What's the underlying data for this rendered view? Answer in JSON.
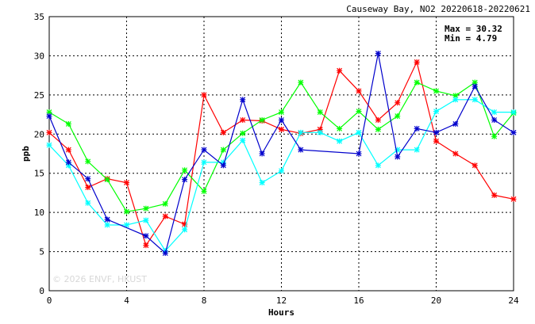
{
  "chart_data": {
    "type": "line",
    "title": "Causeway Bay, NO2 20220618-20220621",
    "xlabel": "Hours",
    "ylabel": "ppb",
    "xlim": [
      0,
      24
    ],
    "ylim": [
      0,
      35
    ],
    "xticks": [
      0,
      4,
      8,
      12,
      16,
      20,
      24
    ],
    "yticks": [
      0,
      5,
      10,
      15,
      20,
      25,
      30,
      35
    ],
    "grid": "dashed",
    "stats": {
      "max_label": "Max = 30.32",
      "min_label": "Min =  4.79"
    },
    "watermark": "© 2026  ENVF, HKUST",
    "series": [
      {
        "color": "#ff0000",
        "x": [
          0,
          1,
          2,
          3,
          4,
          5,
          6,
          7,
          8,
          9,
          10,
          11,
          12,
          13,
          14,
          15,
          16,
          17,
          18,
          19,
          20,
          21,
          22,
          23,
          24
        ],
        "y": [
          20.2,
          18.0,
          13.2,
          14.3,
          13.8,
          5.8,
          9.5,
          8.5,
          25.0,
          20.2,
          21.8,
          21.7,
          20.6,
          20.1,
          20.6,
          28.1,
          25.5,
          21.8,
          24.0,
          29.2,
          19.1,
          17.5,
          16.0,
          12.2,
          11.7
        ]
      },
      {
        "color": "#00ff00",
        "x": [
          0,
          1,
          2,
          3,
          4,
          5,
          6,
          7,
          8,
          9,
          10,
          11,
          12,
          13,
          14,
          15,
          16,
          17,
          18,
          19,
          20,
          21,
          22,
          23,
          24
        ],
        "y": [
          22.8,
          21.3,
          16.5,
          14.2,
          10.1,
          10.5,
          11.1,
          15.4,
          12.7,
          18.0,
          20.1,
          21.8,
          22.8,
          26.6,
          22.8,
          20.7,
          22.9,
          20.6,
          22.3,
          26.6,
          25.5,
          24.9,
          26.6,
          19.7,
          22.7
        ]
      },
      {
        "color": "#00ffff",
        "x": [
          0,
          1,
          2,
          3,
          4,
          5,
          6,
          7,
          8,
          9,
          10,
          11,
          12,
          13,
          14,
          15,
          16,
          17,
          18,
          19,
          20,
          21,
          22,
          23,
          24
        ],
        "y": [
          18.6,
          16.0,
          11.2,
          8.4,
          8.4,
          9.0,
          5.1,
          7.8,
          16.4,
          16.4,
          19.2,
          13.8,
          15.3,
          20.2,
          20.2,
          19.1,
          20.2,
          16.0,
          18.0,
          18.0,
          22.9,
          24.4,
          24.4,
          22.8,
          22.8
        ]
      },
      {
        "color": "#0000cc",
        "x": [
          0,
          1,
          2,
          3,
          5,
          6,
          7,
          8,
          9,
          10,
          11,
          12,
          13,
          16,
          17,
          18,
          19,
          20,
          21,
          22,
          23,
          24
        ],
        "y": [
          22.3,
          16.4,
          14.3,
          9.1,
          7.0,
          4.8,
          14.2,
          18.0,
          16.0,
          24.4,
          17.5,
          21.8,
          18.0,
          17.5,
          30.3,
          17.1,
          20.7,
          20.2,
          21.3,
          26.1,
          21.8,
          20.2
        ]
      }
    ]
  }
}
